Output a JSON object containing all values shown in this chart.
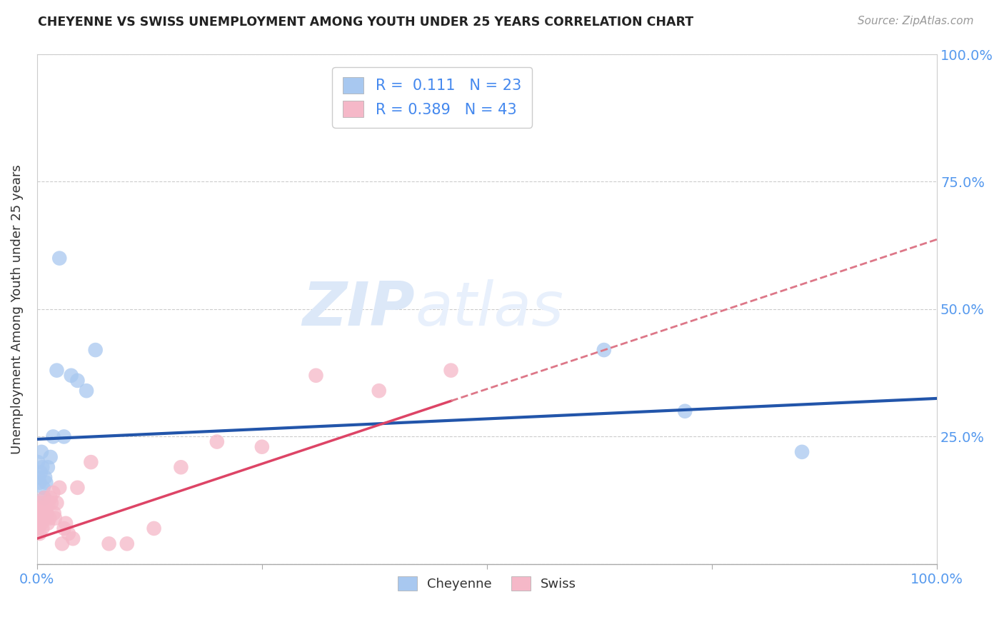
{
  "title": "CHEYENNE VS SWISS UNEMPLOYMENT AMONG YOUTH UNDER 25 YEARS CORRELATION CHART",
  "source": "Source: ZipAtlas.com",
  "ylabel": "Unemployment Among Youth under 25 years",
  "xlim": [
    0.0,
    1.0
  ],
  "ylim": [
    0.0,
    1.0
  ],
  "cheyenne_color": "#a8c8f0",
  "swiss_color": "#f5b8c8",
  "cheyenne_line_color": "#2255aa",
  "swiss_line_color": "#dd4466",
  "swiss_dashed_color": "#dd7788",
  "R_cheyenne": 0.111,
  "N_cheyenne": 23,
  "R_swiss": 0.389,
  "N_swiss": 43,
  "cheyenne_x": [
    0.001,
    0.002,
    0.003,
    0.004,
    0.005,
    0.006,
    0.007,
    0.008,
    0.009,
    0.01,
    0.012,
    0.015,
    0.018,
    0.022,
    0.025,
    0.03,
    0.038,
    0.045,
    0.055,
    0.065,
    0.63,
    0.72,
    0.85
  ],
  "cheyenne_y": [
    0.2,
    0.17,
    0.16,
    0.18,
    0.22,
    0.19,
    0.15,
    0.13,
    0.17,
    0.16,
    0.19,
    0.21,
    0.25,
    0.38,
    0.6,
    0.25,
    0.37,
    0.36,
    0.34,
    0.42,
    0.42,
    0.3,
    0.22
  ],
  "swiss_x": [
    0.001,
    0.001,
    0.002,
    0.002,
    0.003,
    0.003,
    0.004,
    0.004,
    0.005,
    0.005,
    0.006,
    0.007,
    0.008,
    0.008,
    0.009,
    0.01,
    0.011,
    0.012,
    0.013,
    0.014,
    0.015,
    0.016,
    0.018,
    0.019,
    0.02,
    0.022,
    0.025,
    0.028,
    0.03,
    0.032,
    0.035,
    0.04,
    0.045,
    0.06,
    0.08,
    0.1,
    0.13,
    0.16,
    0.2,
    0.25,
    0.31,
    0.38,
    0.46
  ],
  "swiss_y": [
    0.07,
    0.1,
    0.08,
    0.11,
    0.06,
    0.09,
    0.1,
    0.12,
    0.08,
    0.11,
    0.07,
    0.09,
    0.1,
    0.13,
    0.09,
    0.11,
    0.1,
    0.08,
    0.12,
    0.09,
    0.13,
    0.12,
    0.14,
    0.1,
    0.09,
    0.12,
    0.15,
    0.04,
    0.07,
    0.08,
    0.06,
    0.05,
    0.15,
    0.2,
    0.04,
    0.04,
    0.07,
    0.19,
    0.24,
    0.23,
    0.37,
    0.34,
    0.38
  ],
  "background_color": "#ffffff",
  "grid_color": "#cccccc",
  "watermark_zip": "ZIP",
  "watermark_atlas": "atlas",
  "watermark_color": "#dce8f8"
}
